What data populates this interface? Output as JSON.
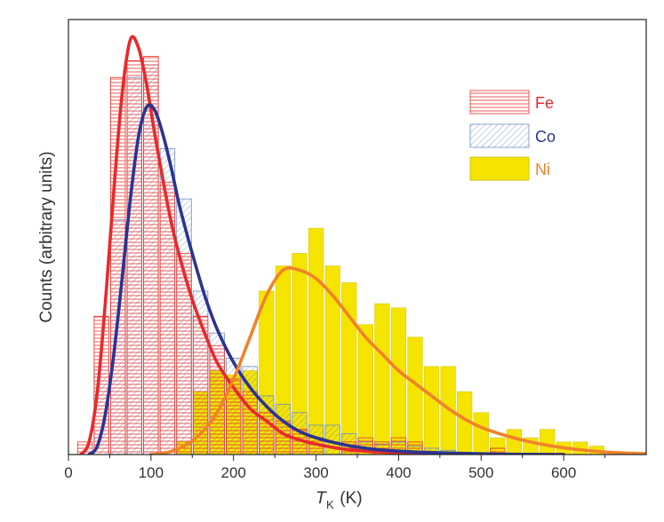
{
  "chart_data": {
    "type": "bar",
    "xlabel_main": "T",
    "xlabel_sub": "K",
    "xlabel_unit": " (K)",
    "ylabel": "Counts (arbitrary units)",
    "xlim": [
      0,
      700
    ],
    "ylim": [
      0,
      1
    ],
    "x_ticks": [
      0,
      100,
      200,
      300,
      400,
      500,
      600
    ],
    "bin_width": 20,
    "series": [
      {
        "name": "Fe",
        "color": "#e8332a",
        "pattern": "horizontal-lines",
        "bins": [
          {
            "x": 20,
            "y": 0.03
          },
          {
            "x": 40,
            "y": 0.33
          },
          {
            "x": 60,
            "y": 0.9
          },
          {
            "x": 80,
            "y": 0.94
          },
          {
            "x": 100,
            "y": 0.95
          },
          {
            "x": 120,
            "y": 0.65
          },
          {
            "x": 140,
            "y": 0.48
          },
          {
            "x": 160,
            "y": 0.33
          },
          {
            "x": 180,
            "y": 0.26
          },
          {
            "x": 200,
            "y": 0.18
          },
          {
            "x": 220,
            "y": 0.15
          },
          {
            "x": 240,
            "y": 0.1
          },
          {
            "x": 260,
            "y": 0.08
          },
          {
            "x": 280,
            "y": 0.06
          },
          {
            "x": 300,
            "y": 0.04
          },
          {
            "x": 340,
            "y": 0.03
          },
          {
            "x": 360,
            "y": 0.04
          },
          {
            "x": 380,
            "y": 0.03
          },
          {
            "x": 400,
            "y": 0.04
          },
          {
            "x": 420,
            "y": 0.03
          },
          {
            "x": 520,
            "y": 0.015
          }
        ]
      },
      {
        "name": "Co",
        "color": "#5b7fb8",
        "pattern": "diagonal-lines",
        "bins": [
          {
            "x": 40,
            "y": 0.21
          },
          {
            "x": 60,
            "y": 0.56
          },
          {
            "x": 80,
            "y": 0.9
          },
          {
            "x": 100,
            "y": 0.93
          },
          {
            "x": 120,
            "y": 0.73
          },
          {
            "x": 140,
            "y": 0.61
          },
          {
            "x": 160,
            "y": 0.39
          },
          {
            "x": 180,
            "y": 0.29
          },
          {
            "x": 200,
            "y": 0.23
          },
          {
            "x": 220,
            "y": 0.21
          },
          {
            "x": 240,
            "y": 0.14
          },
          {
            "x": 260,
            "y": 0.12
          },
          {
            "x": 280,
            "y": 0.1
          },
          {
            "x": 300,
            "y": 0.07
          },
          {
            "x": 320,
            "y": 0.07
          },
          {
            "x": 340,
            "y": 0.05
          },
          {
            "x": 360,
            "y": 0.03
          },
          {
            "x": 380,
            "y": 0.025
          },
          {
            "x": 400,
            "y": 0.03
          },
          {
            "x": 420,
            "y": 0.02
          },
          {
            "x": 440,
            "y": 0.015
          },
          {
            "x": 460,
            "y": 0.01
          }
        ]
      },
      {
        "name": "Ni",
        "color": "#f5e400",
        "pattern": "solid",
        "bins": [
          {
            "x": 140,
            "y": 0.03
          },
          {
            "x": 160,
            "y": 0.15
          },
          {
            "x": 180,
            "y": 0.2
          },
          {
            "x": 200,
            "y": 0.19
          },
          {
            "x": 220,
            "y": 0.2
          },
          {
            "x": 240,
            "y": 0.39
          },
          {
            "x": 260,
            "y": 0.45
          },
          {
            "x": 280,
            "y": 0.48
          },
          {
            "x": 300,
            "y": 0.54
          },
          {
            "x": 320,
            "y": 0.45
          },
          {
            "x": 340,
            "y": 0.41
          },
          {
            "x": 360,
            "y": 0.31
          },
          {
            "x": 380,
            "y": 0.36
          },
          {
            "x": 400,
            "y": 0.35
          },
          {
            "x": 420,
            "y": 0.28
          },
          {
            "x": 440,
            "y": 0.21
          },
          {
            "x": 460,
            "y": 0.21
          },
          {
            "x": 480,
            "y": 0.15
          },
          {
            "x": 500,
            "y": 0.1
          },
          {
            "x": 520,
            "y": 0.04
          },
          {
            "x": 540,
            "y": 0.06
          },
          {
            "x": 560,
            "y": 0.04
          },
          {
            "x": 580,
            "y": 0.06
          },
          {
            "x": 600,
            "y": 0.03
          },
          {
            "x": 620,
            "y": 0.03
          },
          {
            "x": 640,
            "y": 0.02
          }
        ]
      }
    ],
    "fits": [
      {
        "name": "Fe",
        "color": "#e8292c",
        "points": [
          [
            15,
            0
          ],
          [
            25,
            0.03
          ],
          [
            35,
            0.15
          ],
          [
            45,
            0.37
          ],
          [
            55,
            0.63
          ],
          [
            65,
            0.86
          ],
          [
            75,
            0.99
          ],
          [
            85,
            0.97
          ],
          [
            95,
            0.88
          ],
          [
            105,
            0.76
          ],
          [
            115,
            0.65
          ],
          [
            125,
            0.55
          ],
          [
            135,
            0.47
          ],
          [
            150,
            0.37
          ],
          [
            165,
            0.29
          ],
          [
            180,
            0.22
          ],
          [
            200,
            0.16
          ],
          [
            220,
            0.11
          ],
          [
            240,
            0.08
          ],
          [
            260,
            0.05
          ],
          [
            280,
            0.035
          ],
          [
            300,
            0.025
          ],
          [
            330,
            0.014
          ],
          [
            360,
            0.008
          ],
          [
            400,
            0.004
          ],
          [
            450,
            0.002
          ],
          [
            520,
            0.0005
          ],
          [
            600,
            0
          ]
        ]
      },
      {
        "name": "Co",
        "color": "#2b3393",
        "points": [
          [
            25,
            0
          ],
          [
            35,
            0.02
          ],
          [
            45,
            0.1
          ],
          [
            55,
            0.24
          ],
          [
            65,
            0.42
          ],
          [
            75,
            0.61
          ],
          [
            85,
            0.76
          ],
          [
            95,
            0.83
          ],
          [
            105,
            0.82
          ],
          [
            115,
            0.76
          ],
          [
            125,
            0.68
          ],
          [
            135,
            0.59
          ],
          [
            150,
            0.48
          ],
          [
            165,
            0.38
          ],
          [
            180,
            0.3
          ],
          [
            200,
            0.22
          ],
          [
            220,
            0.16
          ],
          [
            240,
            0.115
          ],
          [
            260,
            0.08
          ],
          [
            280,
            0.055
          ],
          [
            300,
            0.04
          ],
          [
            330,
            0.025
          ],
          [
            360,
            0.015
          ],
          [
            400,
            0.008
          ],
          [
            450,
            0.004
          ],
          [
            520,
            0.001
          ],
          [
            600,
            0
          ]
        ]
      },
      {
        "name": "Ni",
        "color": "#f0822a",
        "points": [
          [
            100,
            0
          ],
          [
            120,
            0.005
          ],
          [
            140,
            0.02
          ],
          [
            160,
            0.05
          ],
          [
            180,
            0.1
          ],
          [
            200,
            0.18
          ],
          [
            220,
            0.28
          ],
          [
            240,
            0.38
          ],
          [
            260,
            0.44
          ],
          [
            280,
            0.44
          ],
          [
            300,
            0.42
          ],
          [
            320,
            0.38
          ],
          [
            340,
            0.33
          ],
          [
            360,
            0.28
          ],
          [
            380,
            0.24
          ],
          [
            400,
            0.2
          ],
          [
            420,
            0.17
          ],
          [
            440,
            0.14
          ],
          [
            460,
            0.11
          ],
          [
            480,
            0.085
          ],
          [
            500,
            0.065
          ],
          [
            530,
            0.045
          ],
          [
            560,
            0.03
          ],
          [
            600,
            0.016
          ],
          [
            650,
            0.006
          ],
          [
            700,
            0.002
          ]
        ]
      }
    ],
    "legend": {
      "position": "top-right",
      "items": [
        {
          "label": "Fe",
          "text_color": "#e8292c"
        },
        {
          "label": "Co",
          "text_color": "#2b3393"
        },
        {
          "label": "Ni",
          "text_color": "#f0822a"
        }
      ]
    }
  }
}
